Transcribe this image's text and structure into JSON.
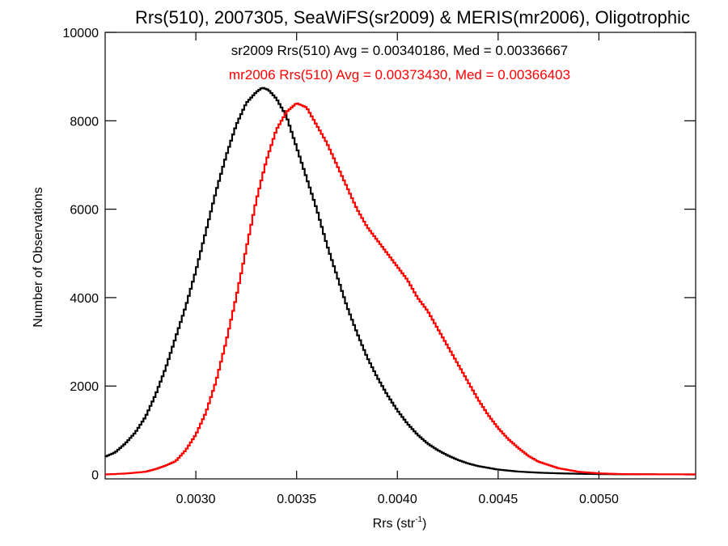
{
  "chart_data": {
    "type": "line",
    "title": "Rrs(510), 2007305, SeaWiFS(sr2009) & MERIS(mr2006), Oligotrophic",
    "xlabel": "Rrs (str",
    "xlabel_sup": "-1",
    "xlabel_end": ")",
    "ylabel": "Number of Observations",
    "xlim": [
      0.00255,
      0.00548
    ],
    "ylim": [
      -100,
      10000
    ],
    "x_ticks": [
      {
        "value": 0.003,
        "label": "0.0030"
      },
      {
        "value": 0.0035,
        "label": "0.0035"
      },
      {
        "value": 0.004,
        "label": "0.0040"
      },
      {
        "value": 0.0045,
        "label": "0.0045"
      },
      {
        "value": 0.005,
        "label": "0.0050"
      }
    ],
    "y_ticks": [
      {
        "value": 0,
        "label": "0"
      },
      {
        "value": 2000,
        "label": "2000"
      },
      {
        "value": 4000,
        "label": "4000"
      },
      {
        "value": 6000,
        "label": "6000"
      },
      {
        "value": 8000,
        "label": "8000"
      },
      {
        "value": 10000,
        "label": "10000"
      }
    ],
    "legend_placement": "top-center",
    "series": [
      {
        "name": "sr2009 Rrs(510) Avg = 0.00340186, Med = 0.00336667",
        "color": "#000000",
        "x": [
          0.00255,
          0.0026,
          0.00265,
          0.0027,
          0.00275,
          0.0028,
          0.00285,
          0.0029,
          0.00295,
          0.003,
          0.00305,
          0.0031,
          0.00315,
          0.0032,
          0.00325,
          0.0033,
          0.00333,
          0.00336,
          0.0034,
          0.00345,
          0.0035,
          0.00355,
          0.0036,
          0.00365,
          0.0037,
          0.00375,
          0.0038,
          0.00385,
          0.0039,
          0.00395,
          0.004,
          0.00405,
          0.0041,
          0.00415,
          0.0042,
          0.00425,
          0.0043,
          0.00435,
          0.0044,
          0.0045,
          0.0046,
          0.0047,
          0.0048,
          0.0049,
          0.005,
          0.0051,
          0.0052,
          0.0053,
          0.00548
        ],
        "y": [
          400,
          500,
          700,
          950,
          1300,
          1800,
          2400,
          3100,
          3800,
          4600,
          5500,
          6400,
          7200,
          7900,
          8400,
          8650,
          8750,
          8700,
          8500,
          8100,
          7400,
          6700,
          6000,
          5200,
          4500,
          3800,
          3200,
          2650,
          2200,
          1800,
          1450,
          1150,
          900,
          700,
          550,
          430,
          330,
          250,
          190,
          110,
          65,
          40,
          25,
          15,
          8,
          5,
          3,
          2,
          1
        ]
      },
      {
        "name": "mr2006 Rrs(510) Avg = 0.00373430, Med = 0.00366403",
        "color": "#ff0000",
        "x": [
          0.00255,
          0.00265,
          0.00275,
          0.0028,
          0.00285,
          0.0029,
          0.00295,
          0.003,
          0.00305,
          0.0031,
          0.00315,
          0.0032,
          0.00325,
          0.0033,
          0.00335,
          0.0034,
          0.00345,
          0.0035,
          0.00355,
          0.0036,
          0.00365,
          0.0037,
          0.00375,
          0.0038,
          0.00385,
          0.0039,
          0.00395,
          0.004,
          0.00405,
          0.0041,
          0.00415,
          0.0042,
          0.00425,
          0.0043,
          0.00435,
          0.0044,
          0.00445,
          0.0045,
          0.00455,
          0.0046,
          0.00465,
          0.0047,
          0.0048,
          0.0049,
          0.005,
          0.0051,
          0.0052,
          0.0053,
          0.00548
        ],
        "y": [
          0,
          20,
          60,
          120,
          200,
          300,
          550,
          900,
          1400,
          2100,
          3000,
          4000,
          5100,
          6200,
          7100,
          7800,
          8200,
          8400,
          8300,
          7900,
          7500,
          7000,
          6500,
          6000,
          5600,
          5300,
          5000,
          4700,
          4400,
          4000,
          3700,
          3300,
          2900,
          2500,
          2100,
          1700,
          1350,
          1050,
          800,
          600,
          420,
          290,
          140,
          60,
          25,
          10,
          4,
          2,
          1
        ]
      }
    ]
  }
}
